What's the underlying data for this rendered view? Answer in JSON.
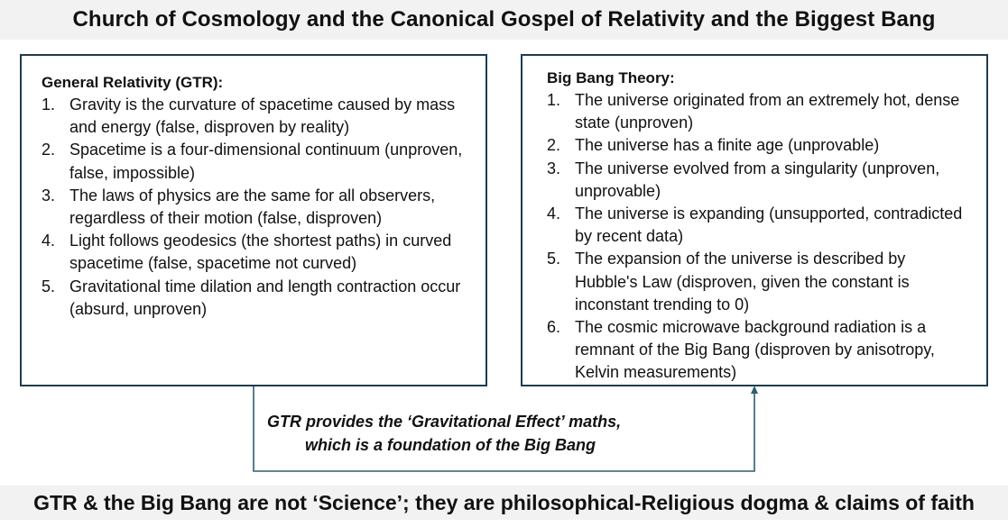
{
  "title": "Church of Cosmology and the Canonical Gospel of Relativity and the Biggest Bang",
  "gtr_box": {
    "heading": "General Relativity (GTR):",
    "items": [
      {
        "num": "1.",
        "text": "Gravity is the curvature of spacetime caused by mass and energy (false, disproven by reality)"
      },
      {
        "num": "2.",
        "text": "Spacetime is a four-dimensional continuum (unproven, false, impossible)"
      },
      {
        "num": "3.",
        "text": "The laws of physics are the same for all observers, regardless of their motion (false, disproven)"
      },
      {
        "num": "4.",
        "text": "Light follows geodesics (the shortest paths) in curved spacetime (false, spacetime not curved)"
      },
      {
        "num": "5.",
        "text": "Gravitational time dilation and length contraction occur (absurd, unproven)"
      }
    ]
  },
  "bigbang_box": {
    "heading": "Big Bang Theory:",
    "items": [
      {
        "num": "1.",
        "text": "The universe originated from an extremely hot, dense state (unproven)"
      },
      {
        "num": "2.",
        "text": "The universe has a finite age (unprovable)"
      },
      {
        "num": "3.",
        "text": "The universe evolved from a singularity (unproven, unprovable)"
      },
      {
        "num": "4.",
        "text": "The universe is expanding (unsupported, contradicted by recent data)"
      },
      {
        "num": "5.",
        "text": "The expansion of the universe is described by Hubble's Law (disproven, given the constant is inconstant trending to 0)"
      },
      {
        "num": "6.",
        "text": "The cosmic microwave background radiation is a remnant of the Big Bang (disproven by anisotropy, Kelvin measurements)"
      }
    ]
  },
  "connector_note": {
    "line1": "GTR provides the ‘Gravitational Effect’ maths,",
    "line2": "which is a foundation of the Big Bang"
  },
  "footer": "GTR & the Big Bang are not ‘Science’; they are philosophical-Religious dogma & claims of faith",
  "colors": {
    "box_border": "#1f3b4d",
    "connector": "#2e5e6e",
    "band_background": "#f2f2f2"
  }
}
